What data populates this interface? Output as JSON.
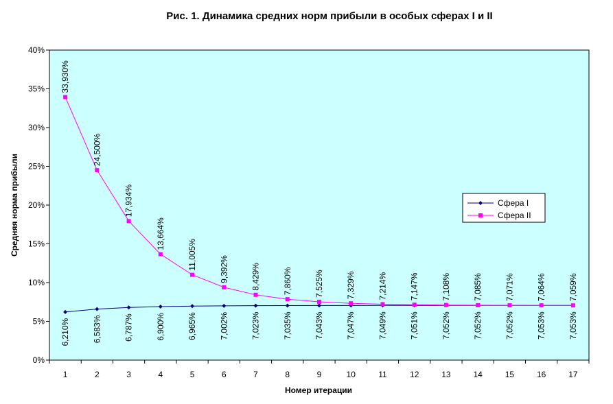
{
  "chart_data": {
    "type": "line",
    "title": "Рис. 1. Динамика средних норм прибыли в особых сферах I и II",
    "xlabel": "Номер итерации",
    "ylabel": "Средняя норма прибыли",
    "categories": [
      "1",
      "2",
      "3",
      "4",
      "5",
      "6",
      "7",
      "8",
      "9",
      "10",
      "11",
      "12",
      "13",
      "14",
      "15",
      "16",
      "17"
    ],
    "y_ticks": [
      "0%",
      "5%",
      "10%",
      "15%",
      "20%",
      "25%",
      "30%",
      "35%",
      "40%"
    ],
    "ylim": [
      0,
      40
    ],
    "grid": false,
    "legend_position": "right",
    "plot_background": "#ccffff",
    "series": [
      {
        "name": "Сфера I",
        "color": "#000080",
        "marker": "diamond",
        "label_position": "below",
        "values": [
          6.21,
          6.583,
          6.787,
          6.9,
          6.965,
          7.002,
          7.023,
          7.035,
          7.043,
          7.047,
          7.049,
          7.051,
          7.052,
          7.052,
          7.052,
          7.053,
          7.053
        ],
        "labels": [
          "6,210%",
          "6,583%",
          "6,787%",
          "6,900%",
          "6,965%",
          "7,002%",
          "7,023%",
          "7,035%",
          "7,043%",
          "7,047%",
          "7,049%",
          "7,051%",
          "7,052%",
          "7,052%",
          "7,052%",
          "7,053%",
          "7,053%"
        ]
      },
      {
        "name": "Сфера II",
        "color": "#ff00ff",
        "marker": "square",
        "label_position": "above",
        "values": [
          33.93,
          24.5,
          17.934,
          13.664,
          11.005,
          9.392,
          8.429,
          7.86,
          7.525,
          7.329,
          7.214,
          7.147,
          7.108,
          7.085,
          7.071,
          7.064,
          7.059
        ],
        "labels": [
          "33,930%",
          "24,500%",
          "17,934%",
          "13,664%",
          "11,005%",
          "9,392%",
          "8,429%",
          "7,860%",
          "7,525%",
          "7,329%",
          "7,214%",
          "7,147%",
          "7,108%",
          "7,085%",
          "7,071%",
          "7,064%",
          "7,059%"
        ]
      }
    ]
  }
}
